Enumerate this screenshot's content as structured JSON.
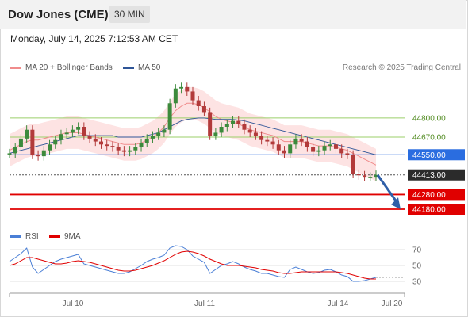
{
  "header": {
    "title": "Dow Jones (CME)",
    "timeframe": "30 MIN"
  },
  "datetime": "Monday, July 14, 2025 7:12:53 AM CET",
  "legend_main": [
    {
      "label": "MA 20 + Bollinger Bands",
      "color": "#f08c8c"
    },
    {
      "label": "MA 50",
      "color": "#2f5597"
    }
  ],
  "legend_rsi": [
    {
      "label": "RSI",
      "color": "#4a7fd6"
    },
    {
      "label": "9MA",
      "color": "#e00000"
    }
  ],
  "credit": "Research © 2025 Trading Central",
  "colors": {
    "resistance": "#9bcf6a",
    "support": "#e00000",
    "pivot": "#2a6de0",
    "last": "#2b2b2b",
    "arrow": "#2f5fa8"
  },
  "chart_data": {
    "type": "line",
    "title": "",
    "ylim": [
      44040,
      45090
    ],
    "price_levels": [
      {
        "label": "44800.00",
        "value": 44800,
        "kind": "resistance"
      },
      {
        "label": "44670.00",
        "value": 44670,
        "kind": "resistance"
      },
      {
        "label": "44550.00",
        "value": 44550,
        "kind": "pivot"
      },
      {
        "label": "44413.00",
        "value": 44413,
        "kind": "last"
      },
      {
        "label": "44280.00",
        "value": 44280,
        "kind": "support"
      },
      {
        "label": "44180.00",
        "value": 44180,
        "kind": "support"
      }
    ],
    "x_ticks": [
      "Jul 10",
      "Jul 11",
      "Jul 14",
      "Jul 20"
    ],
    "price_series": [
      44560,
      44600,
      44660,
      44720,
      44550,
      44540,
      44580,
      44620,
      44650,
      44690,
      44700,
      44720,
      44740,
      44680,
      44660,
      44640,
      44620,
      44610,
      44600,
      44580,
      44570,
      44580,
      44600,
      44630,
      44660,
      44680,
      44700,
      44720,
      44900,
      45000,
      45010,
      44980,
      44920,
      44880,
      44840,
      44680,
      44700,
      44740,
      44760,
      44780,
      44760,
      44720,
      44700,
      44680,
      44650,
      44640,
      44620,
      44580,
      44560,
      44620,
      44660,
      44640,
      44600,
      44570,
      44580,
      44610,
      44620,
      44590,
      44560,
      44550,
      44420,
      44410,
      44400,
      44400,
      44413
    ],
    "ma20_series": [
      44580,
      44600,
      44620,
      44640,
      44650,
      44650,
      44660,
      44670,
      44680,
      44690,
      44700,
      44700,
      44700,
      44690,
      44680,
      44670,
      44660,
      44650,
      44640,
      44630,
      44620,
      44620,
      44620,
      44630,
      44650,
      44670,
      44700,
      44740,
      44800,
      44850,
      44880,
      44900,
      44900,
      44890,
      44870,
      44840,
      44810,
      44790,
      44780,
      44770,
      44760,
      44740,
      44720,
      44710,
      44700,
      44690,
      44680,
      44660,
      44640,
      44640,
      44640,
      44640,
      44630,
      44620,
      44610,
      44610,
      44610,
      44600,
      44590,
      44580,
      44560,
      44540,
      44520,
      44500,
      44480
    ],
    "ma50_series": [
      44560,
      44570,
      44580,
      44590,
      44600,
      44610,
      44620,
      44630,
      44640,
      44650,
      44660,
      44670,
      44680,
      44680,
      44680,
      44680,
      44680,
      44680,
      44680,
      44670,
      44670,
      44670,
      44670,
      44670,
      44680,
      44690,
      44700,
      44720,
      44740,
      44760,
      44780,
      44790,
      44795,
      44800,
      44800,
      44795,
      44790,
      44790,
      44790,
      44790,
      44785,
      44780,
      44770,
      44760,
      44750,
      44740,
      44730,
      44720,
      44710,
      44700,
      44690,
      44680,
      44670,
      44660,
      44650,
      44640,
      44630,
      44620,
      44610,
      44600,
      44590,
      44580,
      44570,
      44560,
      44550
    ],
    "rsi": {
      "ylim": [
        20,
        80
      ],
      "ticks": [
        70,
        50,
        30
      ],
      "rsi_series": [
        55,
        60,
        65,
        72,
        48,
        40,
        45,
        50,
        55,
        58,
        60,
        62,
        64,
        52,
        50,
        48,
        46,
        44,
        42,
        40,
        40,
        42,
        46,
        50,
        55,
        58,
        60,
        63,
        72,
        75,
        74,
        70,
        62,
        58,
        54,
        40,
        45,
        50,
        52,
        55,
        52,
        48,
        45,
        43,
        40,
        40,
        38,
        36,
        35,
        45,
        48,
        45,
        42,
        40,
        41,
        44,
        45,
        42,
        38,
        36,
        30,
        30,
        31,
        33,
        35
      ],
      "ma9_series": [
        50,
        52,
        56,
        60,
        60,
        58,
        56,
        54,
        52,
        52,
        53,
        55,
        56,
        55,
        54,
        52,
        50,
        48,
        46,
        44,
        43,
        43,
        44,
        46,
        48,
        50,
        53,
        56,
        60,
        64,
        67,
        68,
        67,
        65,
        62,
        58,
        55,
        52,
        50,
        50,
        50,
        49,
        48,
        47,
        45,
        44,
        43,
        41,
        40,
        40,
        41,
        42,
        42,
        42,
        42,
        42,
        42,
        42,
        41,
        40,
        38,
        36,
        34,
        33,
        33
      ]
    }
  }
}
